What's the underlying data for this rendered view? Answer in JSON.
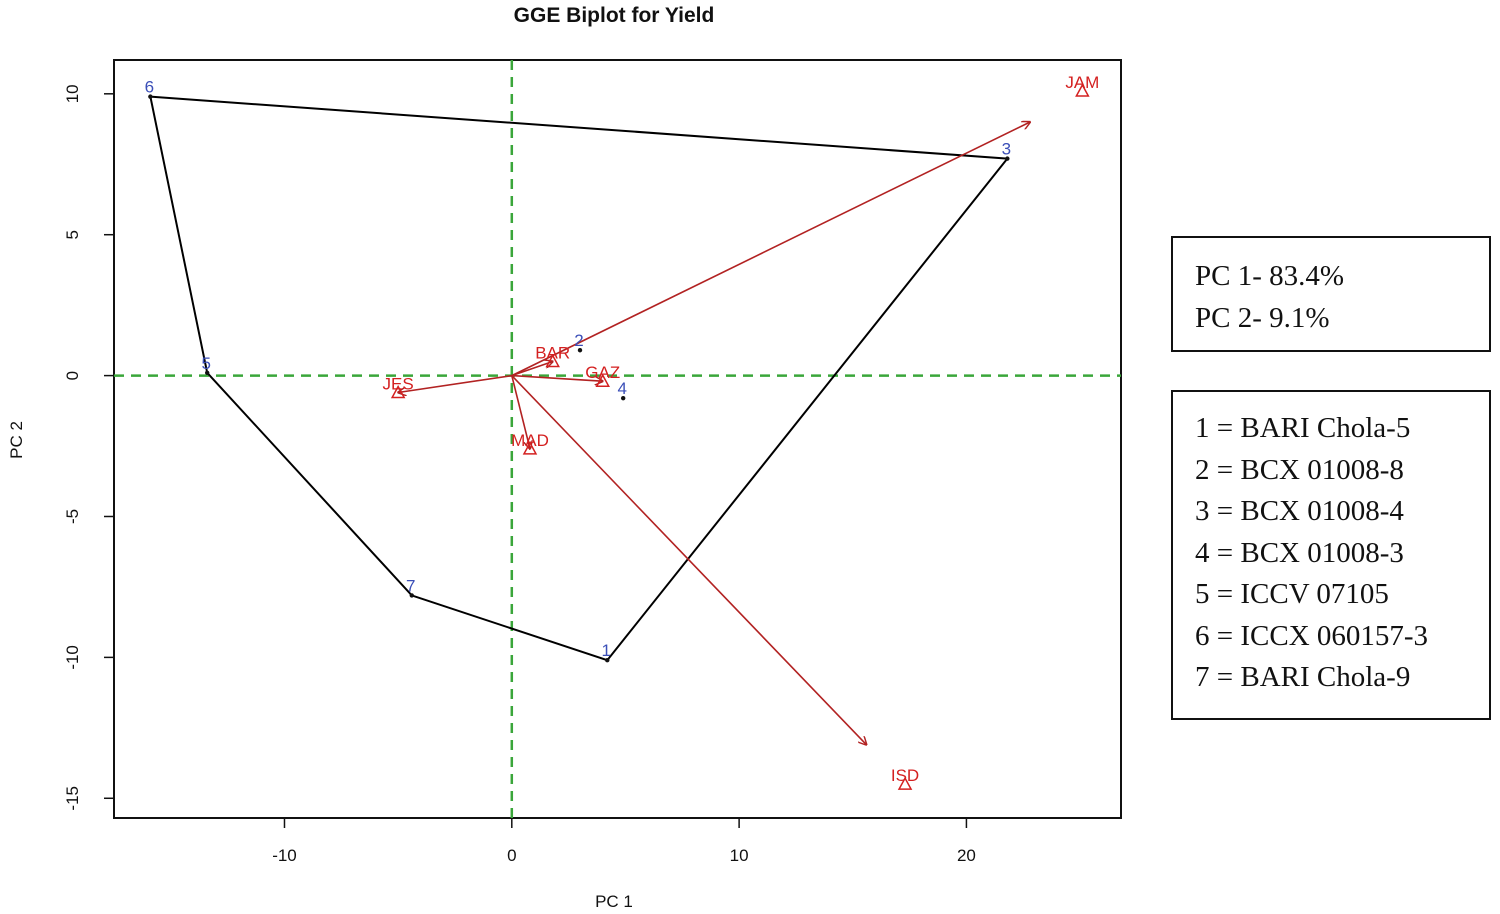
{
  "chart_data": {
    "type": "scatter",
    "title": "GGE Biplot for Yield",
    "xlabel": "PC 1",
    "ylabel": "PC 2",
    "xlim": [
      -17.5,
      26.8
    ],
    "ylim": [
      -15.7,
      11.2
    ],
    "xticks": [
      -10,
      0,
      10,
      20
    ],
    "yticks": [
      10,
      5,
      0,
      -5,
      -10,
      -15
    ],
    "genotypes": [
      {
        "label": "1",
        "x": 4.2,
        "y": -10.1
      },
      {
        "label": "2",
        "x": 3.0,
        "y": 0.9
      },
      {
        "label": "3",
        "x": 21.8,
        "y": 7.7
      },
      {
        "label": "4",
        "x": 4.9,
        "y": -0.8
      },
      {
        "label": "5",
        "x": -13.4,
        "y": 0.1
      },
      {
        "label": "6",
        "x": -15.9,
        "y": 9.9
      },
      {
        "label": "7",
        "x": -4.4,
        "y": -7.8
      }
    ],
    "hull_order": [
      "6",
      "3",
      "1",
      "7",
      "5"
    ],
    "environments": [
      {
        "label": "JAM",
        "x": 25.1,
        "y": 10.1,
        "arrow_to": [
          22.8,
          9.0
        ]
      },
      {
        "label": "BAR",
        "x": 1.8,
        "y": 0.5,
        "arrow_to": [
          1.8,
          0.5
        ]
      },
      {
        "label": "GAZ",
        "x": 4.0,
        "y": -0.2,
        "arrow_to": [
          4.0,
          -0.2
        ]
      },
      {
        "label": "JES",
        "x": -5.0,
        "y": -0.6,
        "arrow_to": [
          -5.0,
          -0.6
        ]
      },
      {
        "label": "MAD",
        "x": 0.8,
        "y": -2.6,
        "arrow_to": [
          0.8,
          -2.6
        ]
      },
      {
        "label": "ISD",
        "x": 17.3,
        "y": -14.5,
        "arrow_to": [
          15.6,
          -13.1
        ]
      }
    ],
    "origin_lines": "dashed",
    "colors": {
      "genotype": "#3b4fb8",
      "environment": "#d42020",
      "arrow": "#b22222",
      "hull": "#000000",
      "axis_lines": "#3aa63a"
    },
    "legend_position": "right"
  },
  "variance": [
    "PC 1- 83.4%",
    "PC 2- 9.1%"
  ],
  "genotype_legend": [
    "1 = BARI Chola-5",
    "2 = BCX 01008-8",
    "3 = BCX 01008-4",
    "4 = BCX 01008-3",
    "5 = ICCV 07105",
    "6 = ICCX 060157-3",
    "7 = BARI Chola-9"
  ]
}
